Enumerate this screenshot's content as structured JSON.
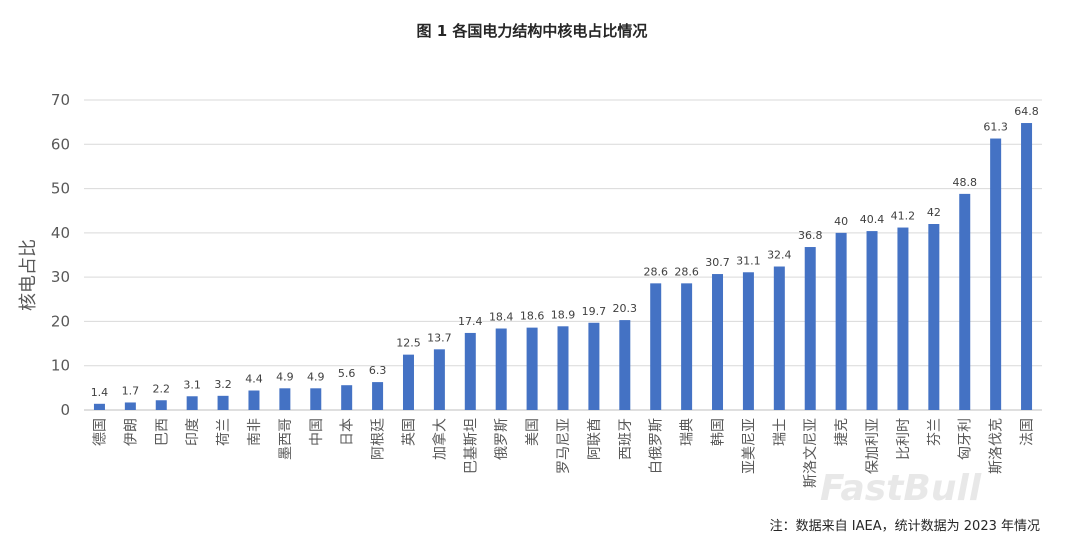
{
  "chart_data": {
    "type": "bar",
    "title": "图 1 各国电力结构中核电占比情况",
    "xlabel": "",
    "ylabel": "核电占比",
    "ylim": [
      0,
      70
    ],
    "yticks": [
      0,
      10,
      20,
      30,
      40,
      50,
      60,
      70
    ],
    "grid": true,
    "bar_color": "#4472C4",
    "categories": [
      "德国",
      "伊朗",
      "巴西",
      "印度",
      "荷兰",
      "南非",
      "墨西哥",
      "中国",
      "日本",
      "阿根廷",
      "英国",
      "加拿大",
      "巴基斯坦",
      "俄罗斯",
      "美国",
      "罗马尼亚",
      "阿联酋",
      "西班牙",
      "白俄罗斯",
      "瑞典",
      "韩国",
      "亚美尼亚",
      "瑞士",
      "斯洛文尼亚",
      "捷克",
      "保加利亚",
      "比利时",
      "芬兰",
      "匈牙利",
      "斯洛伐克",
      "法国"
    ],
    "values": [
      1.4,
      1.7,
      2.2,
      3.1,
      3.2,
      4.4,
      4.9,
      4.9,
      5.6,
      6.3,
      12.5,
      13.7,
      17.4,
      18.4,
      18.6,
      18.9,
      19.7,
      20.3,
      28.6,
      28.6,
      30.7,
      31.1,
      32.4,
      36.8,
      40,
      40.4,
      41.2,
      42,
      48.8,
      61.3,
      64.8
    ],
    "note": "注：数据来自 IAEA，统计数据为 2023 年情况"
  },
  "watermark": "FastBull"
}
